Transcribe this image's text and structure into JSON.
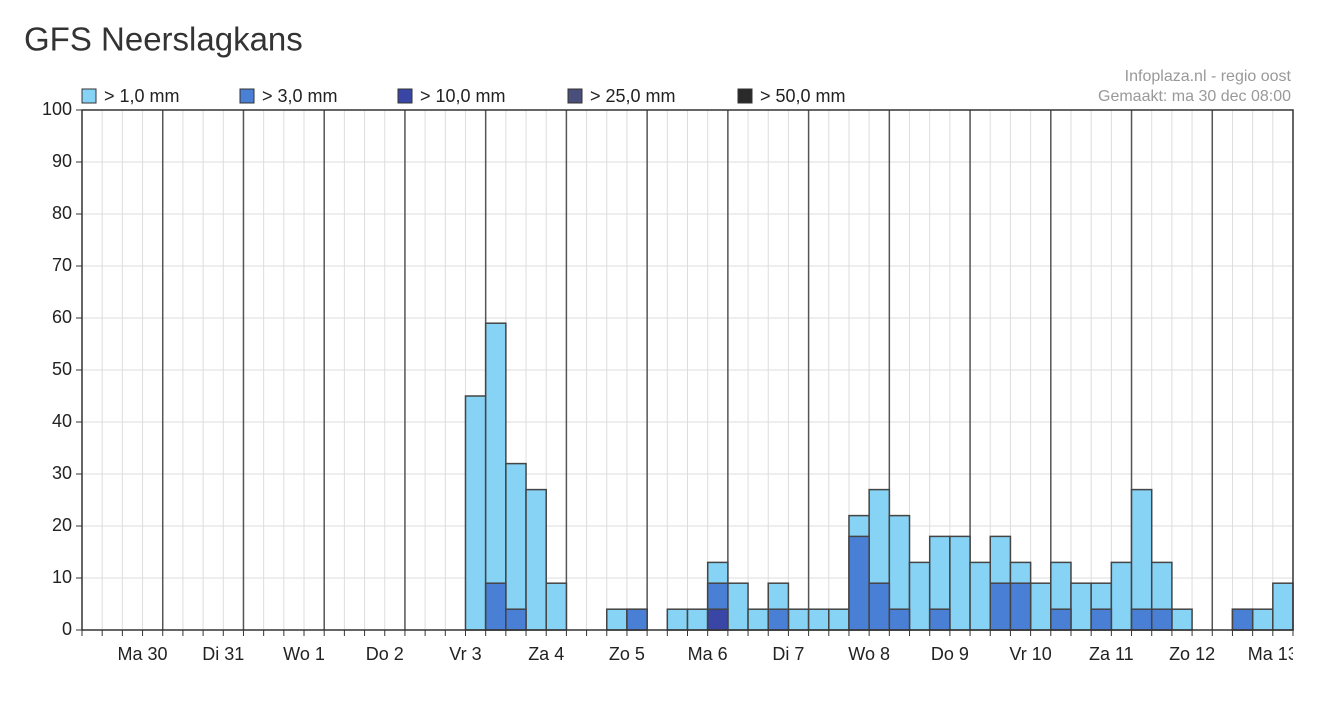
{
  "chart_data": {
    "type": "bar",
    "title": "GFS Neerslagkans",
    "source": "Infoplaza.nl - regio oost",
    "created": "Gemaakt: ma 30 dec 08:00",
    "categories": [
      null,
      null,
      null,
      "Ma 30",
      null,
      null,
      null,
      "Di 31",
      null,
      null,
      null,
      "Wo 1",
      null,
      null,
      null,
      "Do 2",
      null,
      null,
      null,
      "Vr 3",
      null,
      null,
      null,
      "Za 4",
      null,
      null,
      null,
      "Zo 5",
      null,
      null,
      null,
      "Ma 6",
      null,
      null,
      null,
      "Di 7",
      null,
      null,
      null,
      "Wo 8",
      null,
      null,
      null,
      "Do 9",
      null,
      null,
      null,
      "Vr 10",
      null,
      null,
      null,
      "Za 11",
      null,
      null,
      null,
      "Zo 12",
      null,
      null,
      null,
      "Ma 13"
    ],
    "series": [
      {
        "name": "> 1,0 mm",
        "color": "#87d3f5",
        "values": [
          0,
          0,
          0,
          0,
          0,
          0,
          0,
          0,
          0,
          0,
          0,
          0,
          0,
          0,
          0,
          0,
          0,
          0,
          0,
          45,
          59,
          32,
          27,
          9,
          0,
          0,
          4,
          4,
          0,
          4,
          4,
          13,
          9,
          4,
          9,
          4,
          4,
          4,
          22,
          27,
          22,
          13,
          18,
          18,
          13,
          18,
          13,
          9,
          13,
          9,
          9,
          13,
          27,
          13,
          4,
          0,
          0,
          4,
          4,
          9
        ]
      },
      {
        "name": "> 3,0 mm",
        "color": "#4a7fd6",
        "values": [
          0,
          0,
          0,
          0,
          0,
          0,
          0,
          0,
          0,
          0,
          0,
          0,
          0,
          0,
          0,
          0,
          0,
          0,
          0,
          0,
          9,
          4,
          0,
          0,
          0,
          0,
          0,
          4,
          0,
          0,
          0,
          9,
          0,
          0,
          4,
          0,
          0,
          0,
          18,
          9,
          4,
          0,
          4,
          0,
          0,
          9,
          9,
          0,
          4,
          0,
          4,
          0,
          4,
          4,
          0,
          0,
          0,
          4,
          0,
          0
        ]
      },
      {
        "name": "> 10,0 mm",
        "color": "#3a46a6",
        "values": [
          0,
          0,
          0,
          0,
          0,
          0,
          0,
          0,
          0,
          0,
          0,
          0,
          0,
          0,
          0,
          0,
          0,
          0,
          0,
          0,
          0,
          0,
          0,
          0,
          0,
          0,
          0,
          0,
          0,
          0,
          0,
          4,
          0,
          0,
          0,
          0,
          0,
          0,
          0,
          0,
          0,
          0,
          0,
          0,
          0,
          0,
          0,
          0,
          0,
          0,
          0,
          0,
          0,
          0,
          0,
          0,
          0,
          0,
          0,
          0
        ]
      },
      {
        "name": "> 25,0 mm",
        "color": "#4a4e7a",
        "values": [
          0,
          0,
          0,
          0,
          0,
          0,
          0,
          0,
          0,
          0,
          0,
          0,
          0,
          0,
          0,
          0,
          0,
          0,
          0,
          0,
          0,
          0,
          0,
          0,
          0,
          0,
          0,
          0,
          0,
          0,
          0,
          0,
          0,
          0,
          0,
          0,
          0,
          0,
          0,
          0,
          0,
          0,
          0,
          0,
          0,
          0,
          0,
          0,
          0,
          0,
          0,
          0,
          0,
          0,
          0,
          0,
          0,
          0,
          0,
          0
        ]
      },
      {
        "name": "> 50,0 mm",
        "color": "#2a2a2a",
        "values": [
          0,
          0,
          0,
          0,
          0,
          0,
          0,
          0,
          0,
          0,
          0,
          0,
          0,
          0,
          0,
          0,
          0,
          0,
          0,
          0,
          0,
          0,
          0,
          0,
          0,
          0,
          0,
          0,
          0,
          0,
          0,
          0,
          0,
          0,
          0,
          0,
          0,
          0,
          0,
          0,
          0,
          0,
          0,
          0,
          0,
          0,
          0,
          0,
          0,
          0,
          0,
          0,
          0,
          0,
          0,
          0,
          0,
          0,
          0,
          0
        ]
      }
    ],
    "ylim": [
      0,
      100
    ],
    "yticks": [
      0,
      10,
      20,
      30,
      40,
      50,
      60,
      70,
      80,
      90,
      100
    ],
    "grid": true
  }
}
